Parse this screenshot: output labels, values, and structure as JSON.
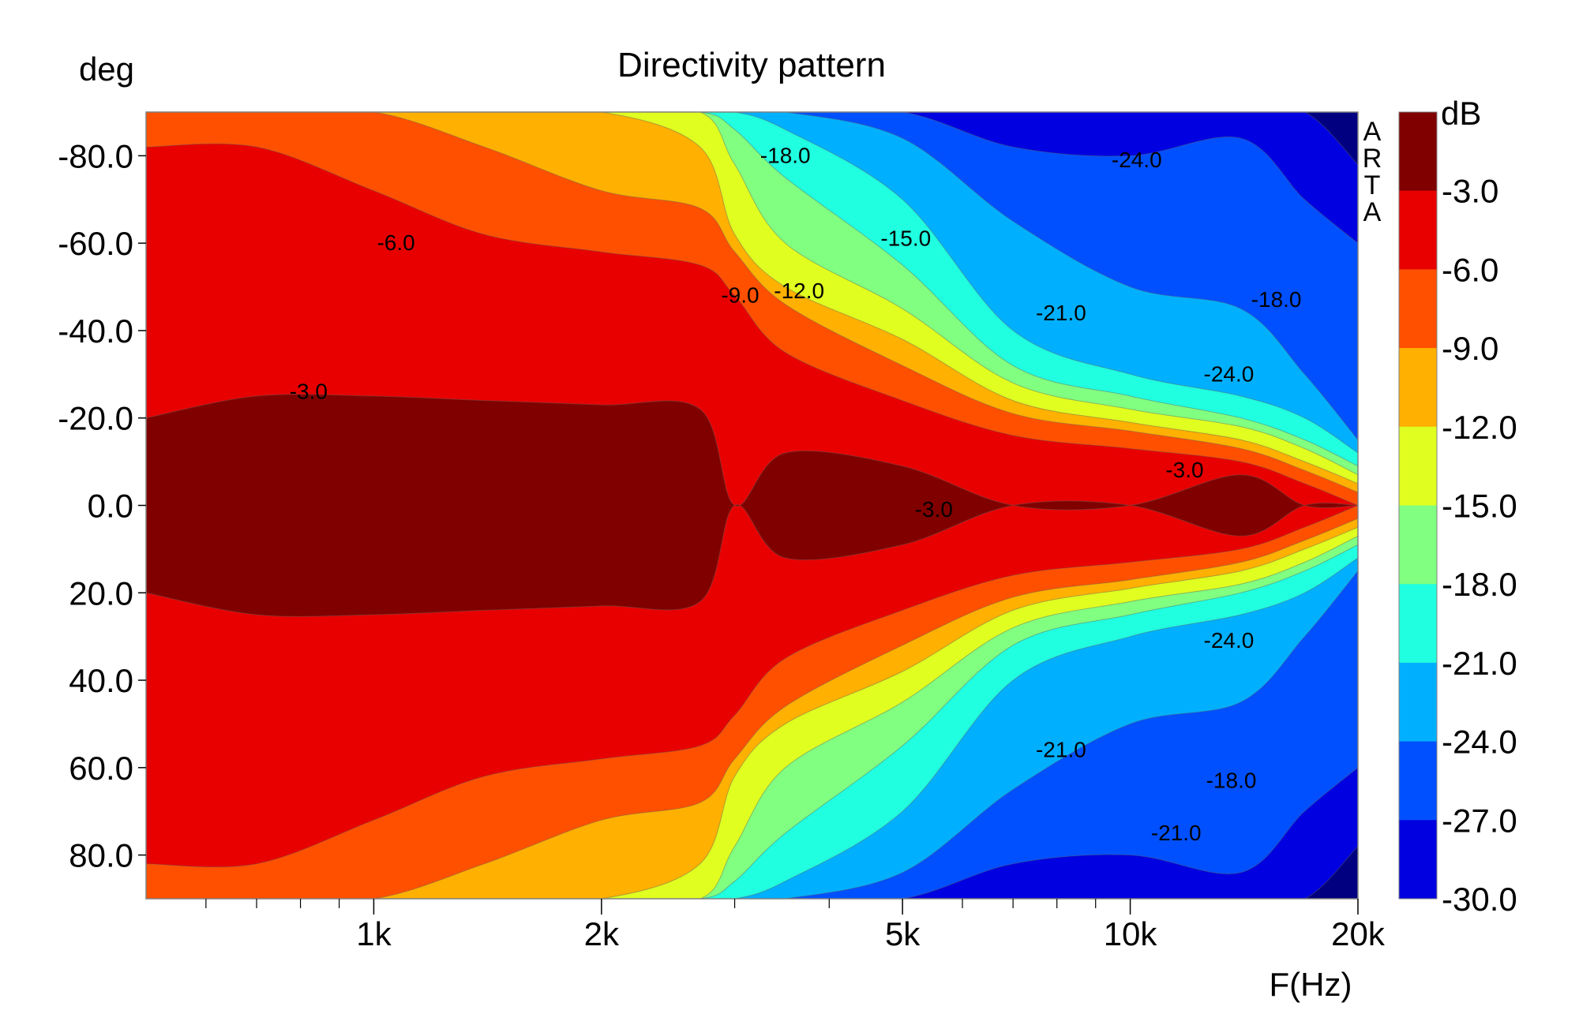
{
  "chart_data": {
    "type": "heatmap",
    "title": "Directivity pattern",
    "xlabel": "F(Hz)",
    "ylabel": "deg",
    "x_scale": "log",
    "xlim": [
      500,
      20000
    ],
    "ylim": [
      -90,
      90
    ],
    "x_ticks": [
      {
        "value": 1000,
        "label": "1k"
      },
      {
        "value": 2000,
        "label": "2k"
      },
      {
        "value": 5000,
        "label": "5k"
      },
      {
        "value": 10000,
        "label": "10k"
      },
      {
        "value": 20000,
        "label": "20k"
      }
    ],
    "x_minor_ticks": [
      600,
      700,
      800,
      900,
      3000,
      4000,
      6000,
      7000,
      8000,
      9000
    ],
    "y_ticks": [
      {
        "value": -80,
        "label": "-80.0"
      },
      {
        "value": -60,
        "label": "-60.0"
      },
      {
        "value": -40,
        "label": "-40.0"
      },
      {
        "value": -20,
        "label": "-20.0"
      },
      {
        "value": 0,
        "label": "0.0"
      },
      {
        "value": 20,
        "label": "20.0"
      },
      {
        "value": 40,
        "label": "40.0"
      },
      {
        "value": 60,
        "label": "60.0"
      },
      {
        "value": 80,
        "label": "80.0"
      }
    ],
    "colorbar": {
      "title": "dB",
      "colors": [
        "#800000",
        "#e80000",
        "#ff5000",
        "#ffb000",
        "#e0ff20",
        "#80ff80",
        "#20ffe0",
        "#00b0ff",
        "#0050ff",
        "#0000e0",
        "#000080"
      ],
      "tick_labels": [
        "-3.0",
        "-6.0",
        "-9.0",
        "-12.0",
        "-15.0",
        "-18.0",
        "-21.0",
        "-24.0",
        "-27.0",
        "-30.0"
      ]
    },
    "watermark": [
      "A",
      "R",
      "T",
      "A"
    ],
    "series": [
      {
        "level": -3,
        "values": [
          20,
          25,
          25,
          24,
          23,
          22,
          0,
          12,
          9,
          0,
          0,
          7,
          0,
          0
        ]
      },
      {
        "level": -6,
        "values": [
          82,
          82,
          72,
          62,
          58,
          55,
          48,
          35,
          24,
          16,
          13,
          10,
          5,
          0
        ]
      },
      {
        "level": -9,
        "values": [
          90,
          90,
          90,
          82,
          72,
          68,
          58,
          46,
          32,
          21,
          17,
          13,
          8,
          3
        ]
      },
      {
        "level": -12,
        "values": [
          90,
          90,
          90,
          90,
          90,
          82,
          62,
          50,
          38,
          24,
          19,
          15,
          10,
          5
        ]
      },
      {
        "level": -15,
        "values": [
          90,
          90,
          90,
          90,
          90,
          90,
          78,
          60,
          45,
          28,
          22,
          18,
          13,
          7
        ]
      },
      {
        "level": -18,
        "values": [
          90,
          90,
          90,
          90,
          90,
          90,
          86,
          75,
          55,
          32,
          25,
          20,
          15,
          9
        ]
      },
      {
        "level": -21,
        "values": [
          90,
          90,
          90,
          90,
          90,
          90,
          90,
          86,
          70,
          40,
          30,
          25,
          20,
          12
        ]
      },
      {
        "level": -24,
        "values": [
          90,
          90,
          90,
          90,
          90,
          90,
          90,
          90,
          84,
          65,
          50,
          45,
          30,
          15
        ]
      },
      {
        "level": -27,
        "values": [
          90,
          90,
          90,
          90,
          90,
          90,
          90,
          90,
          90,
          82,
          80,
          84,
          70,
          60
        ]
      },
      {
        "level": -30,
        "values": [
          90,
          90,
          90,
          90,
          90,
          90,
          90,
          90,
          90,
          90,
          90,
          90,
          90,
          78
        ]
      }
    ],
    "x": [
      500,
      700,
      1000,
      1400,
      2000,
      2700,
      3000,
      3500,
      5000,
      7000,
      10000,
      14000,
      17000,
      20000
    ],
    "annotations": [
      {
        "text": "-18.0",
        "x": 3500,
        "y": -80
      },
      {
        "text": "-24.0",
        "x": 10200,
        "y": -79
      },
      {
        "text": "-6.0",
        "x": 1070,
        "y": -60
      },
      {
        "text": "-15.0",
        "x": 5050,
        "y": -61
      },
      {
        "text": "-9.0",
        "x": 3050,
        "y": -48
      },
      {
        "text": "-12.0",
        "x": 3650,
        "y": -49
      },
      {
        "text": "-21.0",
        "x": 8100,
        "y": -44
      },
      {
        "text": "-18.0",
        "x": 15600,
        "y": -47
      },
      {
        "text": "-24.0",
        "x": 13500,
        "y": -30
      },
      {
        "text": "-3.0",
        "x": 820,
        "y": -26
      },
      {
        "text": "-3.0",
        "x": 11800,
        "y": -8
      },
      {
        "text": "-3.0",
        "x": 5500,
        "y": 1
      },
      {
        "text": "-24.0",
        "x": 13500,
        "y": 31
      },
      {
        "text": "-21.0",
        "x": 8100,
        "y": 56
      },
      {
        "text": "-18.0",
        "x": 13600,
        "y": 63
      },
      {
        "text": "-21.0",
        "x": 11500,
        "y": 75
      }
    ]
  }
}
